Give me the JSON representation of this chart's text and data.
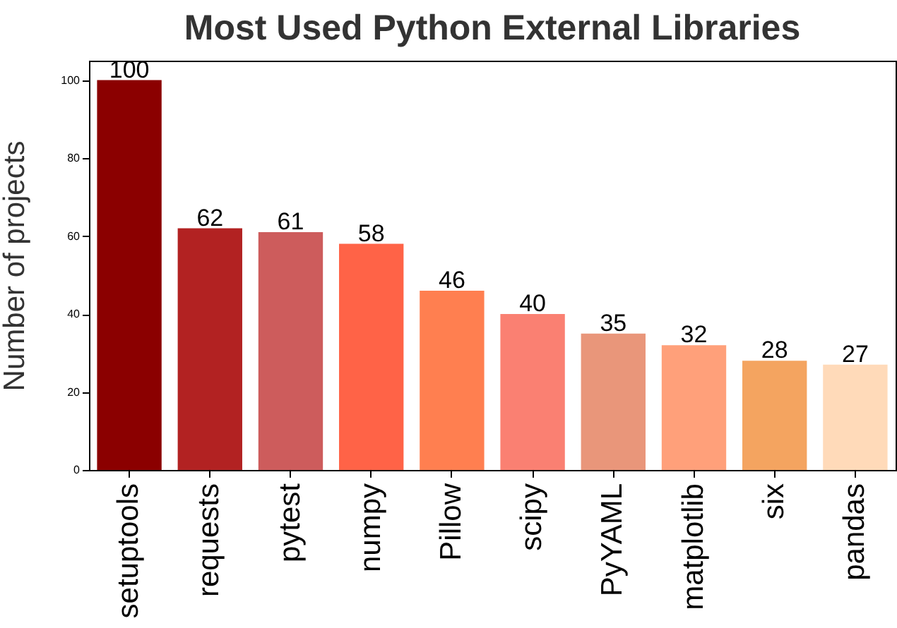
{
  "chart_data": {
    "type": "bar",
    "title": "Most Used Python External Libraries",
    "ylabel": "Number of projects",
    "categories": [
      "setuptools",
      "requests",
      "pytest",
      "numpy",
      "Pillow",
      "scipy",
      "PyYAML",
      "matplotlib",
      "six",
      "pandas"
    ],
    "values": [
      100,
      62,
      61,
      58,
      46,
      40,
      35,
      32,
      28,
      27
    ],
    "colors": [
      "#8b0000",
      "#b22222",
      "#cd5c5c",
      "#ff6347",
      "#ff7f50",
      "#fa8072",
      "#e9967a",
      "#ffa07a",
      "#f4a460",
      "#ffdab9"
    ],
    "ylim": [
      0,
      105
    ],
    "yticks": [
      0,
      20,
      40,
      60,
      80,
      100
    ],
    "data_labels": true,
    "grid": false,
    "legend": false
  }
}
